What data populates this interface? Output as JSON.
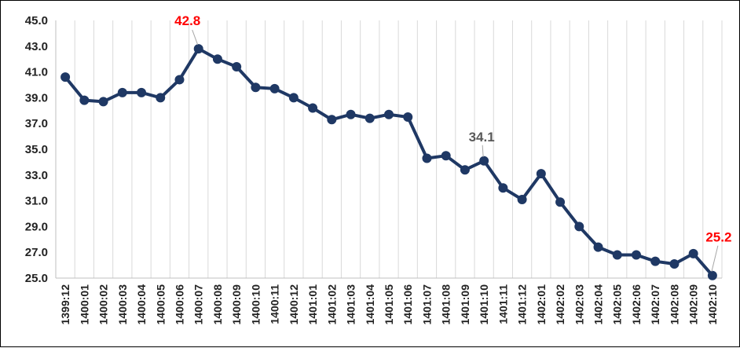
{
  "chart_data": {
    "type": "line",
    "title": "",
    "xlabel": "",
    "ylabel": "",
    "ylim": [
      25.0,
      45.0
    ],
    "yticks": [
      "25.0",
      "27.0",
      "29.0",
      "31.0",
      "33.0",
      "35.0",
      "37.0",
      "39.0",
      "41.0",
      "43.0",
      "45.0"
    ],
    "grid": "vertical",
    "line_color": "#1f3864",
    "x": [
      "1399:12",
      "1400:01",
      "1400:02",
      "1400:03",
      "1400:04",
      "1400:05",
      "1400:06",
      "1400:07",
      "1400:08",
      "1400:09",
      "1400:10",
      "1400:11",
      "1400:12",
      "1401:01",
      "1401:02",
      "1401:03",
      "1401:04",
      "1401:05",
      "1401:06",
      "1401:07",
      "1401:08",
      "1401:09",
      "1401:10",
      "1401:11",
      "1401:12",
      "1402:01",
      "1402:02",
      "1402:03",
      "1402:04",
      "1402:05",
      "1402:06",
      "1402:07",
      "1402:08",
      "1402:09",
      "1402:10"
    ],
    "series": [
      {
        "values": [
          40.6,
          38.8,
          38.7,
          39.4,
          39.4,
          39.0,
          40.4,
          42.8,
          42.0,
          41.4,
          39.8,
          39.7,
          39.0,
          38.2,
          37.3,
          37.7,
          37.4,
          37.7,
          37.5,
          34.3,
          34.5,
          33.4,
          34.1,
          32.0,
          31.1,
          33.1,
          30.9,
          29.0,
          27.4,
          26.8,
          26.8,
          26.3,
          26.1,
          26.9,
          25.2
        ]
      }
    ],
    "annotations": [
      {
        "text": "42.8",
        "index": 7,
        "color": "#ff0000"
      },
      {
        "text": "34.1",
        "index": 22,
        "color": "#595959"
      },
      {
        "text": "25.2",
        "index": 34,
        "color": "#ff0000"
      }
    ]
  }
}
